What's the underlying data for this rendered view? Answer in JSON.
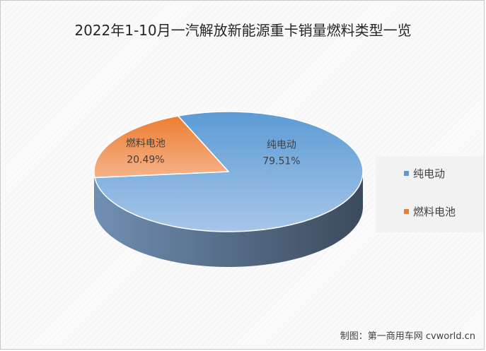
{
  "title": "2022年1-10月一汽解放新能源重卡销量燃料类型一览",
  "credit": "制图：第一商用车网 cvworld.cn",
  "chart_data": {
    "type": "pie",
    "title": "2022年1-10月一汽解放新能源重卡销量燃料类型一览",
    "legend_position": "right",
    "slices": [
      {
        "label": "纯电动",
        "value": 79.51,
        "value_label": "79.51%",
        "color": "#5b9bd5"
      },
      {
        "label": "燃料电池",
        "value": 20.49,
        "value_label": "20.49%",
        "color": "#ed7d31"
      }
    ]
  }
}
